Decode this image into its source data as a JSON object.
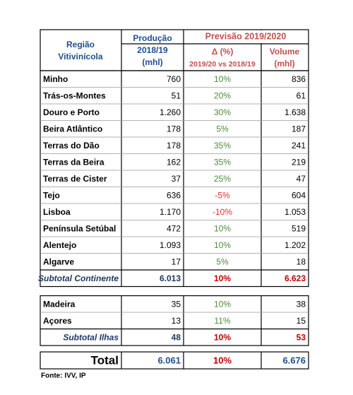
{
  "header": {
    "region": [
      "Região",
      "Vitivinícola"
    ],
    "production": [
      "Produção",
      "2018/19",
      "(mhl)"
    ],
    "forecast": "Previsão 2019/2020",
    "delta": [
      "Δ (%)",
      "2019/20 vs 2018/19"
    ],
    "volume": [
      "Volume",
      "(mhl)"
    ]
  },
  "continent": [
    [
      "Minho",
      "760",
      "10%",
      "836"
    ],
    [
      "Trás-os-Montes",
      "51",
      "20%",
      "61"
    ],
    [
      "Douro e Porto",
      "1.260",
      "30%",
      "1.638"
    ],
    [
      "Beira Atlântico",
      "178",
      "5%",
      "187"
    ],
    [
      "Terras do Dão",
      "178",
      "35%",
      "241"
    ],
    [
      "Terras da Beira",
      "162",
      "35%",
      "219"
    ],
    [
      "Terras de Cister",
      "37",
      "25%",
      "47"
    ],
    [
      "Tejo",
      "636",
      "-5%",
      "604"
    ],
    [
      "Lisboa",
      "1.170",
      "-10%",
      "1.053"
    ],
    [
      "Península Setúbal",
      "472",
      "10%",
      "519"
    ],
    [
      "Alentejo",
      "1.093",
      "10%",
      "1.202"
    ],
    [
      "Algarve",
      "17",
      "5%",
      "18"
    ]
  ],
  "subtotal_continent": [
    "Subtotal Continente",
    "6.013",
    "10%",
    "6.623"
  ],
  "islands": [
    [
      "Madeira",
      "35",
      "10%",
      "38"
    ],
    [
      "Açores",
      "13",
      "11%",
      "15"
    ]
  ],
  "subtotal_islands": [
    "Subtotal Ilhas",
    "48",
    "10%",
    "53"
  ],
  "total": [
    "Total",
    "6.061",
    "10%",
    "6.676"
  ],
  "source": "Fonte: IVV, IP"
}
